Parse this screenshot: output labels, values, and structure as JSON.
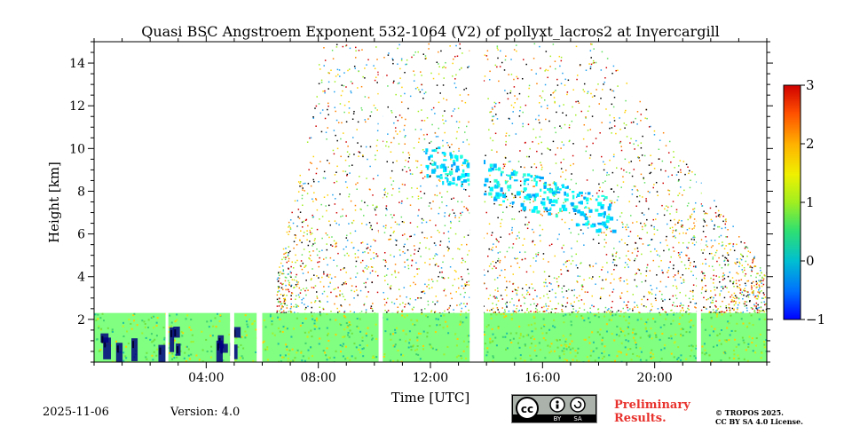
{
  "chart_data": {
    "type": "heatmap",
    "title": "Quasi BSC Angstroem Exponent 532-1064 (V2) of pollyxt_lacros2 at Invercargill",
    "xlabel": "Time [UTC]",
    "ylabel": "Height [km]",
    "xlim": [
      0,
      24
    ],
    "ylim": [
      0,
      15
    ],
    "x_ticks": [
      4,
      8,
      12,
      16,
      20
    ],
    "x_tick_labels": [
      "04:00",
      "08:00",
      "12:00",
      "16:00",
      "20:00"
    ],
    "y_ticks": [
      2,
      4,
      6,
      8,
      10,
      12,
      14
    ],
    "y_tick_labels": [
      "2",
      "4",
      "6",
      "8",
      "10",
      "12",
      "14"
    ],
    "colorbar": {
      "min": -1,
      "max": 3,
      "ticks": [
        -1,
        0,
        1,
        2,
        3
      ],
      "tick_labels": [
        "−1",
        "0",
        "1",
        "2",
        "3"
      ],
      "colormap": "jet"
    },
    "data_gaps_utc": [
      [
        2.55,
        2.65
      ],
      [
        4.85,
        5.0
      ],
      [
        5.8,
        6.0
      ],
      [
        10.15,
        10.3
      ],
      [
        13.4,
        13.9
      ],
      [
        21.5,
        21.65
      ]
    ],
    "regions": [
      {
        "desc": "boundary layer",
        "t_start": 0,
        "t_end": 24,
        "h_bottom": 0,
        "h_top": 2.3,
        "value": 1.0
      },
      {
        "desc": "low exponent patches",
        "t_start": 0.2,
        "t_end": 5.1,
        "h_bottom": 0.5,
        "h_top": 1.8,
        "value": -1.0
      },
      {
        "desc": "cloud/aerosol layer",
        "t_start": 11.8,
        "t_end": 18.5,
        "h_bottom": 5.5,
        "h_top": 10.3,
        "value": 0.4
      }
    ]
  },
  "footer": {
    "date": "2025-11-06",
    "version": "Version: 4.0",
    "license_badge": {
      "cc": "cc",
      "by": "BY",
      "sa": "SA"
    },
    "preliminary_line1": "Preliminary",
    "preliminary_line2": "Results.",
    "copyright_line1": "© TROPOS 2025.",
    "copyright_line2": "CC BY SA 4.0 License."
  },
  "colors": {
    "red": "#e8322d",
    "axis": "#000000",
    "background": "#ffffff"
  }
}
